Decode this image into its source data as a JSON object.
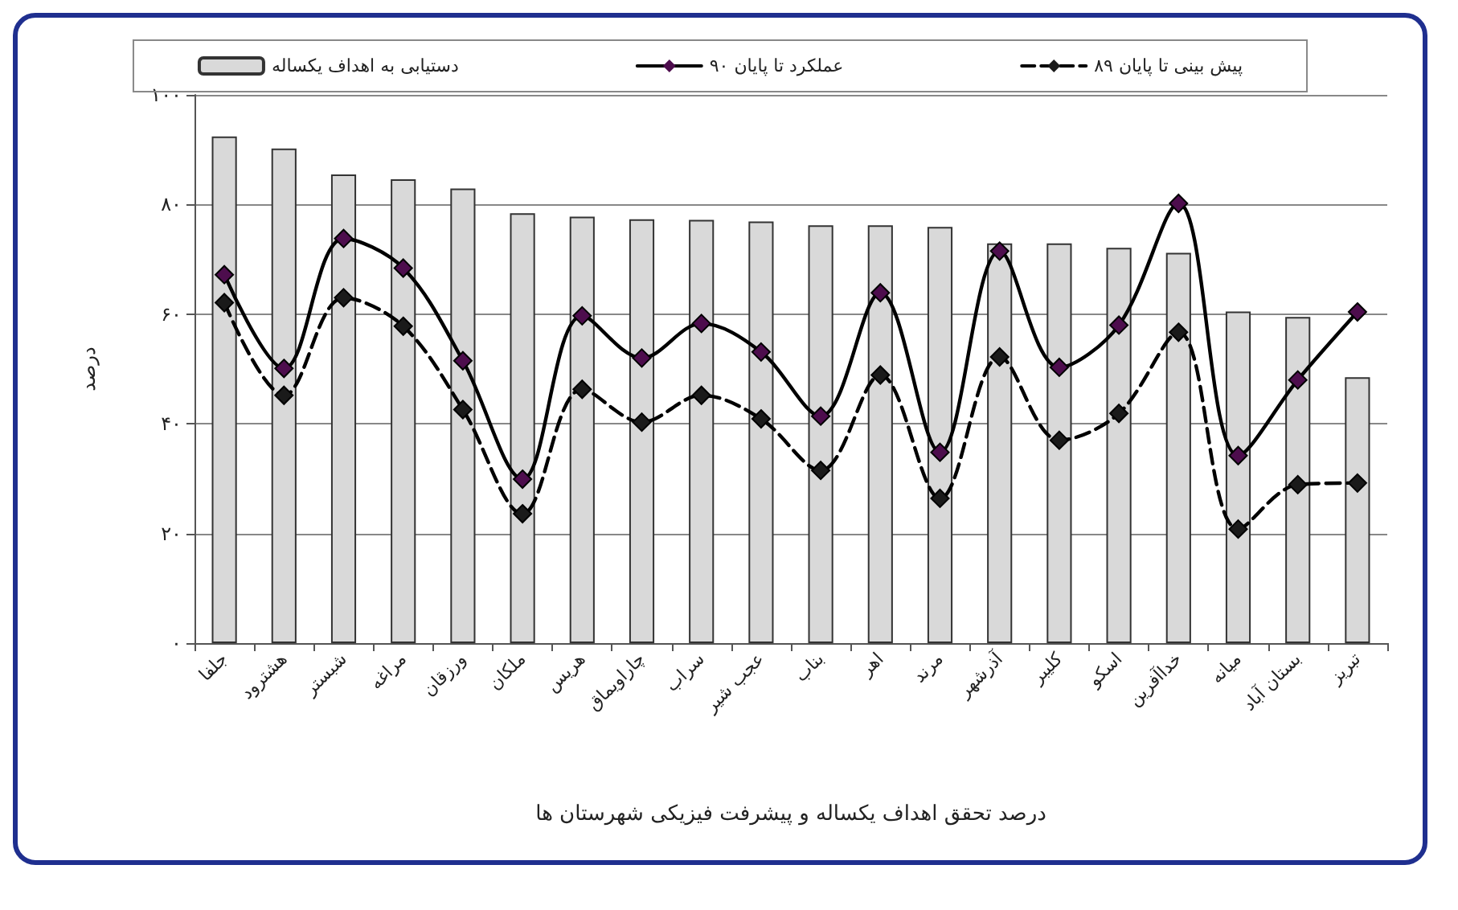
{
  "chart_data": {
    "type": "bar",
    "xlabel": "درصد تحقق اهداف یکساله و پیشرفت فیزیکی شهرستان ها",
    "ylabel": "درصد",
    "categories": [
      "جلفا",
      "هشترود",
      "شبستر",
      "مراغه",
      "ورزقان",
      "ملکان",
      "هریس",
      "چاراویماق",
      "سراب",
      "عجب شیر",
      "بناب",
      "اهر",
      "مرند",
      "آذرشهر",
      "کلیبر",
      "اسکو",
      "خداآفرین",
      "میانه",
      "بستان آباد",
      "تبریز"
    ],
    "series": [
      {
        "name": "دستیابی به اهداف یکساله",
        "color": "#d9d9d9",
        "values": [
          92.4,
          90.2,
          85.5,
          84.6,
          82.9,
          78.4,
          77.8,
          77.3,
          77.2,
          76.9,
          76.2,
          76.2,
          75.9,
          72.9,
          72.9,
          72.1,
          71.2,
          60.5,
          59.5,
          48.5
        ]
      },
      {
        "name": "عملکرد تا پایان ۹۰",
        "type": "line",
        "color": "#000000",
        "marker": "diamond",
        "line_style": "solid",
        "values": [
          67.2,
          50.1,
          73.8,
          68.4,
          51.5,
          29.9,
          59.7,
          52.0,
          58.3,
          53.1,
          41.4,
          63.9,
          34.8,
          71.5,
          50.3,
          58.0,
          80.2,
          34.2,
          48.0,
          60.4
        ]
      },
      {
        "name": "پیش بینی تا پایان ۸۹",
        "type": "line",
        "color": "#000000",
        "marker": "diamond",
        "line_style": "dashed",
        "values": [
          62.1,
          45.2,
          63.0,
          57.8,
          42.6,
          23.6,
          46.3,
          40.3,
          45.2,
          40.9,
          31.5,
          48.9,
          26.4,
          52.2,
          37.0,
          41.9,
          56.7,
          20.8,
          28.9,
          29.2
        ]
      }
    ],
    "ylim": [
      0,
      100
    ],
    "yticks": [
      {
        "value": 0,
        "label": "۰"
      },
      {
        "value": 20,
        "label": "۲۰"
      },
      {
        "value": 40,
        "label": "۴۰"
      },
      {
        "value": 60,
        "label": "۶۰"
      },
      {
        "value": 80,
        "label": "۸۰"
      },
      {
        "value": 100,
        "label": "۱۰۰"
      }
    ],
    "grid": "y",
    "legend": "top"
  }
}
